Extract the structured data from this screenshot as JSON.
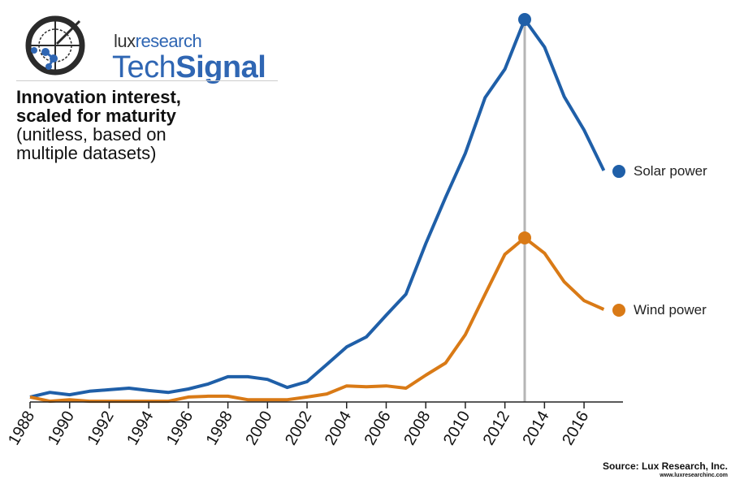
{
  "brand": {
    "lux": "lux",
    "research": "research",
    "tech": "Tech",
    "signal": "Signal"
  },
  "heading": {
    "bold_line1": "Innovation interest,",
    "bold_line2": "scaled for maturity",
    "line3": "(unitless, based on",
    "line4": "multiple datasets)"
  },
  "source": {
    "label": "Source: Lux Research, Inc.",
    "url": "www.luxresearchinc.com"
  },
  "chart_data": {
    "type": "line",
    "title": "Innovation interest, scaled for maturity (unitless, based on multiple datasets)",
    "xlabel": "",
    "ylabel": "",
    "xlim": [
      1988,
      2018
    ],
    "ylim": [
      0,
      100
    ],
    "grid": false,
    "legend_placement": "right, at line ends",
    "x_ticks": [
      1988,
      1990,
      1992,
      1994,
      1996,
      1998,
      2000,
      2002,
      2004,
      2006,
      2008,
      2010,
      2012,
      2014,
      2016
    ],
    "highlight_year": 2013,
    "x": [
      1988,
      1989,
      1990,
      1991,
      1992,
      1993,
      1994,
      1995,
      1996,
      1997,
      1998,
      1999,
      2000,
      2001,
      2002,
      2003,
      2004,
      2005,
      2006,
      2007,
      2008,
      2009,
      2010,
      2011,
      2012,
      2013,
      2014,
      2015,
      2016,
      2017
    ],
    "series": [
      {
        "name": "Solar power",
        "color": "#1f5fa8",
        "values": [
          1.3,
          2.5,
          1.9,
          2.8,
          3.2,
          3.6,
          3.0,
          2.5,
          3.4,
          4.7,
          6.6,
          6.6,
          5.9,
          3.8,
          5.3,
          9.8,
          14.4,
          17.0,
          22.7,
          28.2,
          41.4,
          53.5,
          65.0,
          79.6,
          87.0,
          100,
          92.8,
          79.8,
          71.1,
          60.5
        ]
      },
      {
        "name": "Wind power",
        "color": "#d97a16",
        "values": [
          1.3,
          0.2,
          0.6,
          0.2,
          0.2,
          0.2,
          0.2,
          0.2,
          1.3,
          1.5,
          1.5,
          0.6,
          0.6,
          0.6,
          1.3,
          2.1,
          4.2,
          4.0,
          4.2,
          3.6,
          7.0,
          10.2,
          17.6,
          28.2,
          38.6,
          42.9,
          38.9,
          31.4,
          26.5,
          24.2
        ]
      }
    ]
  }
}
